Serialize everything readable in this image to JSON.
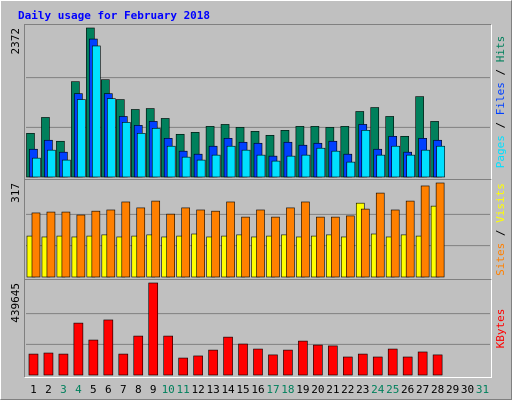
{
  "chart_data": {
    "type": "bar",
    "title": "Daily usage for February 2018",
    "categories": [
      "1",
      "2",
      "3",
      "4",
      "5",
      "6",
      "7",
      "8",
      "9",
      "10",
      "11",
      "12",
      "13",
      "14",
      "15",
      "16",
      "17",
      "18",
      "19",
      "20",
      "21",
      "22",
      "23",
      "24",
      "25",
      "26",
      "27",
      "28",
      "29",
      "30",
      "31"
    ],
    "category_color": "#000000",
    "highlight_categories": [
      "3",
      "4",
      "10",
      "11",
      "17",
      "18",
      "24",
      "25",
      "31"
    ],
    "highlight_color": "#00805c",
    "legend_separator": " / ",
    "grid": true,
    "panels": [
      {
        "ylim": [
          0,
          2372
        ],
        "yticks": [
          2372
        ],
        "series": [
          {
            "name": "Pages",
            "color": "#00e0ff",
            "values": [
              300,
              427,
              269,
              1233,
              2086,
              1248,
              869,
              695,
              774,
              490,
              316,
              269,
              348,
              490,
              427,
              348,
              253,
              332,
              348,
              458,
              411,
              237,
              743,
              348,
              490,
              348,
              427,
              490,
              null,
              null,
              null
            ]
          },
          {
            "name": "Files",
            "color": "#0040ff",
            "values": [
              442,
              585,
              395,
              1327,
              2196,
              1327,
              964,
              822,
              885,
              616,
              411,
              363,
              490,
              616,
              553,
              537,
              332,
              553,
              506,
              537,
              569,
              363,
              837,
              442,
              648,
              395,
              616,
              585,
              null,
              null,
              null
            ]
          },
          {
            "name": "Hits",
            "color": "#00805c",
            "values": [
              695,
              948,
              569,
              1518,
              2372,
              1549,
              1233,
              1075,
              1090,
              932,
              680,
              711,
              806,
              837,
              790,
              727,
              664,
              743,
              806,
              806,
              790,
              806,
              1043,
              1106,
              964,
              648,
              1280,
              885,
              null,
              null,
              null
            ]
          }
        ]
      },
      {
        "ylim": [
          0,
          317
        ],
        "yticks": [
          317
        ],
        "series": [
          {
            "name": "Sites",
            "color": "#ff8000",
            "values": [
              216,
              219,
              219,
              209,
              222,
              226,
              253,
              233,
              256,
              212,
              233,
              226,
              222,
              253,
              202,
              226,
              202,
              233,
              253,
              202,
              202,
              206,
              229,
              283,
              226,
              256,
              307,
              317,
              null,
              null,
              null
            ]
          },
          {
            "name": "Visits",
            "color": "#ffff00",
            "values": [
              138,
              135,
              138,
              135,
              138,
              142,
              135,
              138,
              142,
              135,
              138,
              145,
              135,
              138,
              142,
              135,
              138,
              142,
              135,
              138,
              142,
              135,
              249,
              145,
              135,
              142,
              138,
              239,
              null,
              null,
              null
            ]
          }
        ]
      },
      {
        "ylim": [
          0,
          439645
        ],
        "yticks": [
          439645
        ],
        "series": [
          {
            "name": "KBytes",
            "color": "#ff0000",
            "values": [
              100000,
              105000,
              100000,
              248000,
              167000,
              263000,
              100000,
              186000,
              439645,
              186000,
              81000,
              91000,
              119000,
              181000,
              148000,
              124000,
              96000,
              119000,
              162000,
              143000,
              139000,
              86000,
              100000,
              86000,
              124000,
              86000,
              110000,
              96000,
              null,
              null,
              null
            ]
          }
        ]
      }
    ]
  }
}
